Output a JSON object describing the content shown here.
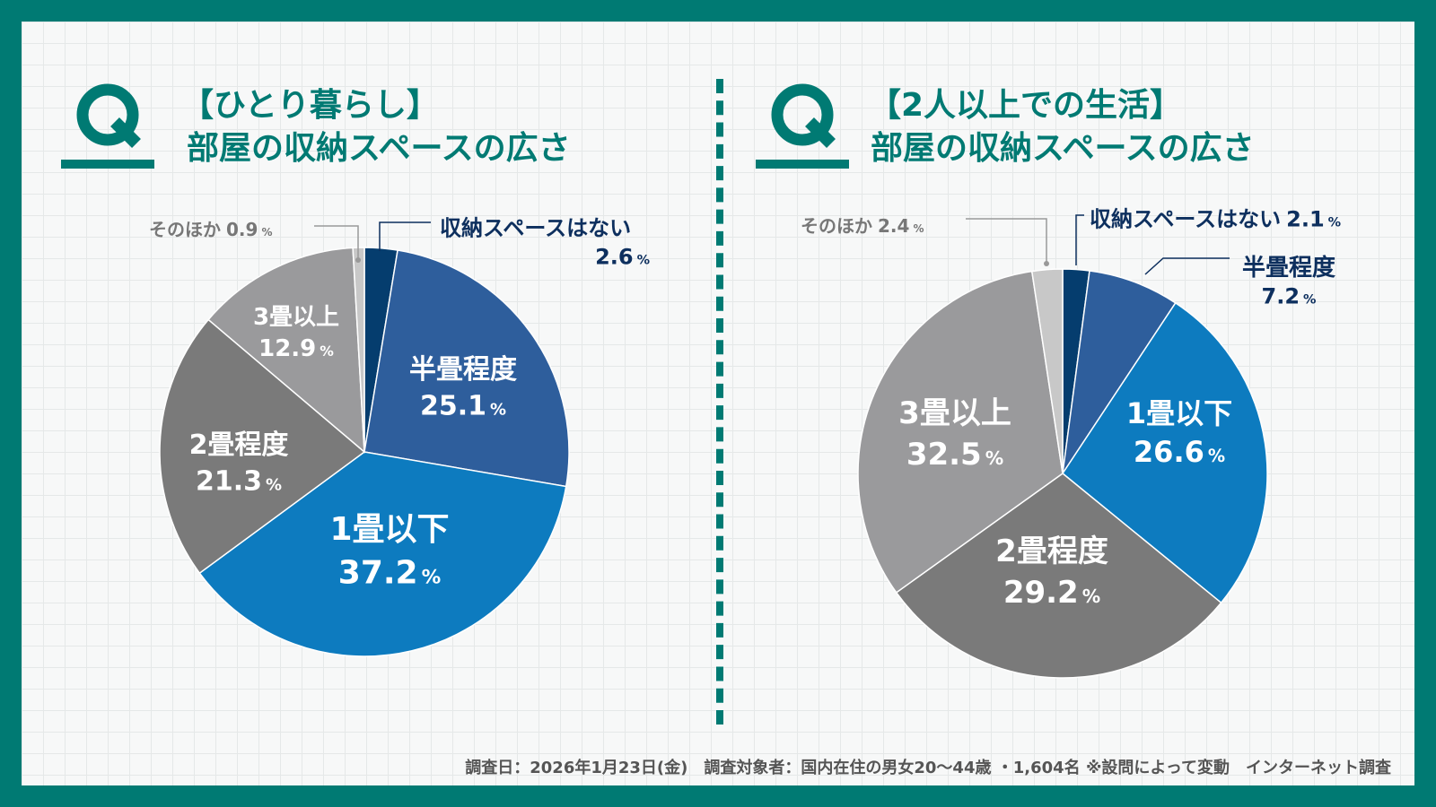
{
  "colors": {
    "frame": "#007a73",
    "title": "#007a73",
    "label_dark": "#0d2f5e",
    "label_gray": "#777777",
    "label_white": "#ffffff"
  },
  "left": {
    "q_icon": "Q",
    "title_line1": "【ひとり暮らし】",
    "title_line2": "部屋の収納スペースの広さ"
  },
  "right": {
    "q_icon": "Q",
    "title_line1": "【2人以上での生活】",
    "title_line2": "部屋の収納スペースの広さ"
  },
  "footer": "調査日：2026年1月23日(金)　調査対象者：国内在住の男女20〜44歳 ・1,604名 ※設問によって変動　インターネット調査",
  "chart_data": [
    {
      "type": "pie",
      "title": "【ひとり暮らし】部屋の収納スペースの広さ",
      "unit": "%",
      "slices": [
        {
          "label": "収納スペースはない",
          "value": 2.6,
          "color": "#053d6e"
        },
        {
          "label": "半畳程度",
          "value": 25.1,
          "color": "#2e5e9c"
        },
        {
          "label": "1畳以下",
          "value": 37.2,
          "color": "#0d7bbf"
        },
        {
          "label": "2畳程度",
          "value": 21.3,
          "color": "#7a7a7a"
        },
        {
          "label": "3畳以上",
          "value": 12.9,
          "color": "#9a9a9c"
        },
        {
          "label": "そのほか",
          "value": 0.9,
          "color": "#c8c8c8"
        }
      ]
    },
    {
      "type": "pie",
      "title": "【2人以上での生活】部屋の収納スペースの広さ",
      "unit": "%",
      "slices": [
        {
          "label": "収納スペースはない",
          "value": 2.1,
          "color": "#053d6e"
        },
        {
          "label": "半畳程度",
          "value": 7.2,
          "color": "#2e5e9c"
        },
        {
          "label": "1畳以下",
          "value": 26.6,
          "color": "#0d7bbf"
        },
        {
          "label": "2畳程度",
          "value": 29.2,
          "color": "#7a7a7a"
        },
        {
          "label": "3畳以上",
          "value": 32.5,
          "color": "#9a9a9c"
        },
        {
          "label": "そのほか",
          "value": 2.4,
          "color": "#c8c8c8"
        }
      ]
    }
  ]
}
